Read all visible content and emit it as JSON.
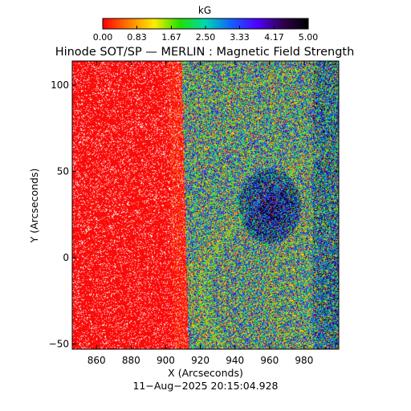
{
  "chart_data": {
    "type": "heatmap",
    "title": "Hinode SOT/SP — MERLIN : Magnetic Field Strength",
    "colorbar": {
      "label": "kG",
      "min": 0.0,
      "max": 5.0,
      "tick_labels": [
        "0.00",
        "0.83",
        "1.67",
        "2.50",
        "3.33",
        "4.17",
        "5.00"
      ],
      "tick_values": [
        0.0,
        0.83,
        1.67,
        2.5,
        3.33,
        4.17,
        5.0
      ],
      "colormap": [
        "#ff0000",
        "#ff7a00",
        "#ffee00",
        "#22e000",
        "#00d8b0",
        "#1060ff",
        "#5000ff",
        "#300050",
        "#000000"
      ]
    },
    "xlabel": "X (Arcseconds)",
    "ylabel": "Y (Arcseconds)",
    "xlim": [
      846,
      1000
    ],
    "ylim": [
      -53,
      114
    ],
    "xticks": [
      860,
      880,
      900,
      920,
      940,
      960,
      980
    ],
    "xtick_labels": [
      "860",
      "880",
      "900",
      "920",
      "940",
      "960",
      "980"
    ],
    "yticks": [
      -50,
      0,
      50,
      100
    ],
    "ytick_labels": [
      "−50",
      "0",
      "50",
      "100"
    ],
    "limb_x_at_top": 909,
    "limb_x_at_bottom": 913,
    "dominant_values": {
      "off_disk_region_kG": 0.0,
      "on_disk_region_kG": 2.5,
      "dark_feature_center": [
        960,
        30
      ],
      "dark_feature_value_kG": 4.5
    },
    "timestamp": "11−Aug−2025 20:15:04.928"
  }
}
